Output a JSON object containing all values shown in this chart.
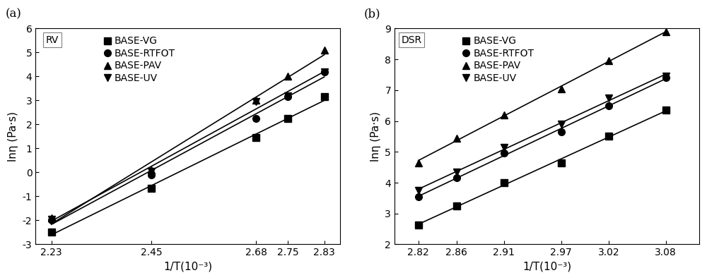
{
  "panel_a": {
    "label": "(a)",
    "tag": "RV",
    "xlabel": "1/T(10⁻³)",
    "ylabel": "lnη (Pa·s)",
    "xlim": [
      2.195,
      2.865
    ],
    "ylim": [
      -3,
      6
    ],
    "xticks": [
      2.23,
      2.45,
      2.68,
      2.75,
      2.83
    ],
    "yticks": [
      -3,
      -2,
      -1,
      0,
      1,
      2,
      3,
      4,
      5,
      6
    ],
    "series": [
      {
        "name": "BASE-VG",
        "marker": "s",
        "x": [
          2.23,
          2.45,
          2.68,
          2.75,
          2.83
        ],
        "y": [
          -2.5,
          -0.65,
          1.45,
          2.25,
          3.15
        ]
      },
      {
        "name": "BASE-RTFOT",
        "marker": "o",
        "x": [
          2.23,
          2.45,
          2.68,
          2.75,
          2.83
        ],
        "y": [
          -2.0,
          -0.1,
          2.25,
          3.15,
          4.2
        ]
      },
      {
        "name": "BASE-PAV",
        "marker": "^",
        "x": [
          2.23,
          2.45,
          2.68,
          2.75,
          2.83
        ],
        "y": [
          -1.9,
          0.1,
          3.0,
          4.0,
          5.1
        ]
      },
      {
        "name": "BASE-UV",
        "marker": "v",
        "x": [
          2.23,
          2.45,
          2.68,
          2.75,
          2.83
        ],
        "y": [
          -1.95,
          0.05,
          2.95,
          3.2,
          4.2
        ]
      }
    ]
  },
  "panel_b": {
    "label": "(b)",
    "tag": "DSR",
    "xlabel": "1/T(10⁻³)",
    "ylabel": "lnη (Pa·s)",
    "xlim": [
      2.795,
      3.115
    ],
    "ylim": [
      2,
      9
    ],
    "xticks": [
      2.82,
      2.86,
      2.91,
      2.97,
      3.02,
      3.08
    ],
    "yticks": [
      2,
      3,
      4,
      5,
      6,
      7,
      8,
      9
    ],
    "series": [
      {
        "name": "BASE-VG",
        "marker": "s",
        "x": [
          2.82,
          2.86,
          2.91,
          2.97,
          3.02,
          3.08
        ],
        "y": [
          2.62,
          3.25,
          4.0,
          4.65,
          5.5,
          6.35
        ]
      },
      {
        "name": "BASE-RTFOT",
        "marker": "o",
        "x": [
          2.82,
          2.86,
          2.91,
          2.97,
          3.02,
          3.08
        ],
        "y": [
          3.55,
          4.15,
          4.95,
          5.65,
          6.5,
          7.4
        ]
      },
      {
        "name": "BASE-PAV",
        "marker": "^",
        "x": [
          2.82,
          2.86,
          2.91,
          2.97,
          3.02,
          3.08
        ],
        "y": [
          4.65,
          5.45,
          6.2,
          7.05,
          7.95,
          8.9
        ]
      },
      {
        "name": "BASE-UV",
        "marker": "v",
        "x": [
          2.82,
          2.86,
          2.91,
          2.97,
          3.02,
          3.08
        ],
        "y": [
          3.75,
          4.35,
          5.15,
          5.9,
          6.75,
          7.45
        ]
      }
    ]
  },
  "marker_size": 7,
  "line_color": "black",
  "marker_color": "black",
  "font_size": 10,
  "label_font_size": 11,
  "tag_font_size": 10
}
